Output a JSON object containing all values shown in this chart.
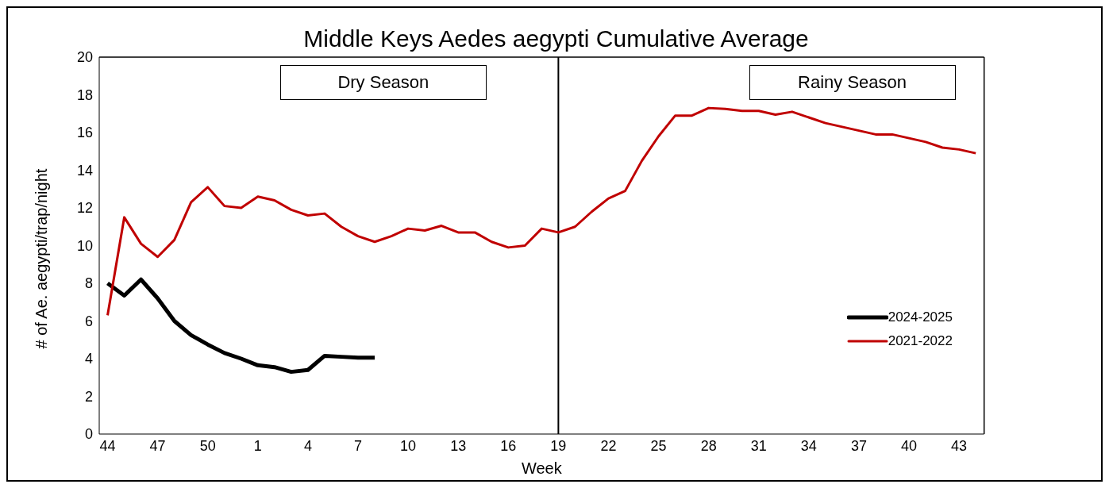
{
  "chart_data": {
    "type": "line",
    "title": "Middle Keys Aedes aegypti Cumulative Average",
    "xlabel": "Week",
    "ylabel": "# of Ae. aegypti/trap/night",
    "categories": [
      "44",
      null,
      null,
      "47",
      null,
      null,
      "50",
      null,
      null,
      "1",
      null,
      null,
      "4",
      null,
      null,
      "7",
      null,
      null,
      "10",
      null,
      null,
      "13",
      null,
      null,
      "16",
      null,
      null,
      "19",
      null,
      null,
      "22",
      null,
      null,
      "25",
      null,
      null,
      "28",
      null,
      null,
      "31",
      null,
      null,
      "34",
      null,
      null,
      "37",
      null,
      null,
      "40",
      null,
      null,
      "43",
      null
    ],
    "series": [
      {
        "name": "2024-2025",
        "color": "#000000",
        "values": [
          8.0,
          7.35,
          8.2,
          7.2,
          6.0,
          5.25,
          4.75,
          4.3,
          4.0,
          3.65,
          3.55,
          3.3,
          3.4,
          4.15,
          4.1,
          4.05,
          4.05,
          null,
          null,
          null,
          null,
          null,
          null,
          null,
          null,
          null,
          null,
          null,
          null,
          null,
          null,
          null,
          null,
          null,
          null,
          null,
          null,
          null,
          null,
          null,
          null,
          null,
          null,
          null,
          null,
          null,
          null,
          null,
          null,
          null,
          null,
          null,
          null
        ]
      },
      {
        "name": "2021-2022",
        "color": "#c00000",
        "values": [
          6.3,
          11.5,
          10.1,
          9.4,
          10.3,
          12.3,
          13.1,
          12.1,
          12.0,
          12.6,
          12.4,
          11.9,
          11.6,
          11.7,
          11.0,
          10.5,
          10.2,
          10.5,
          10.9,
          10.8,
          11.05,
          10.7,
          10.7,
          10.2,
          9.9,
          10.0,
          10.9,
          10.7,
          11.0,
          11.8,
          12.5,
          12.9,
          14.5,
          15.8,
          16.9,
          16.9,
          17.3,
          17.25,
          17.15,
          17.15,
          16.95,
          17.1,
          16.8,
          16.5,
          16.3,
          16.1,
          15.9,
          15.9,
          15.7,
          15.5,
          15.2,
          15.1,
          14.9
        ]
      }
    ],
    "ylim": [
      0,
      20
    ],
    "yticks": [
      0,
      2,
      4,
      6,
      8,
      10,
      12,
      14,
      16,
      18,
      20
    ],
    "grid": false,
    "legend": "right",
    "marker": "none",
    "line_style": "solid",
    "ref_lines": [
      {
        "axis": "x",
        "value": "19",
        "color": "#000000"
      }
    ],
    "annotations": [
      "Dry Season",
      "Rainy Season"
    ]
  }
}
